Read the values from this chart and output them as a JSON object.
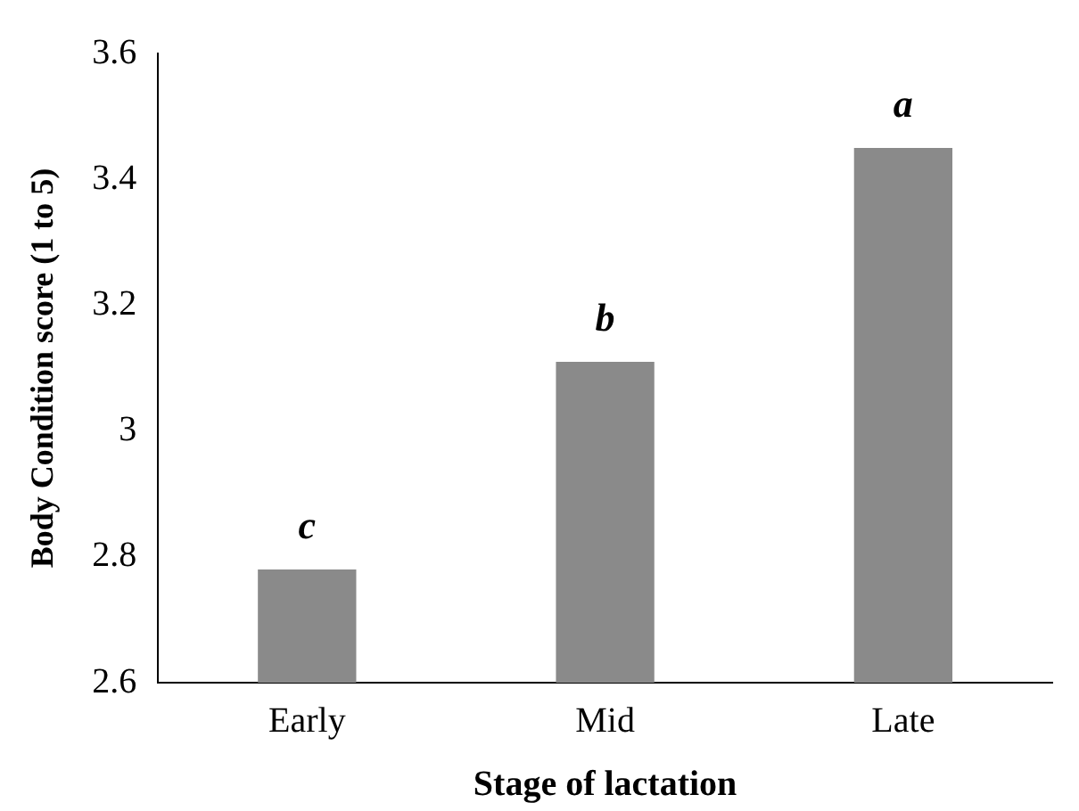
{
  "chart_data": {
    "type": "bar",
    "xlabel": "Stage of lactation",
    "ylabel": "Body Condition score (1 to 5)",
    "categories": [
      "Early",
      "Mid",
      "Late"
    ],
    "values": [
      2.78,
      3.11,
      3.45
    ],
    "color": "#8a8a8a",
    "ylim": [
      2.6,
      3.6
    ],
    "yticks": [
      2.6,
      2.8,
      3,
      3.2,
      3.4,
      3.6
    ],
    "grid": false,
    "legend": false,
    "annotations": [
      {
        "text": "c",
        "x": "Early",
        "y": 2.78
      },
      {
        "text": "b",
        "x": "Mid",
        "y": 3.11
      },
      {
        "text": "a",
        "x": "Late",
        "y": 3.45
      }
    ]
  }
}
